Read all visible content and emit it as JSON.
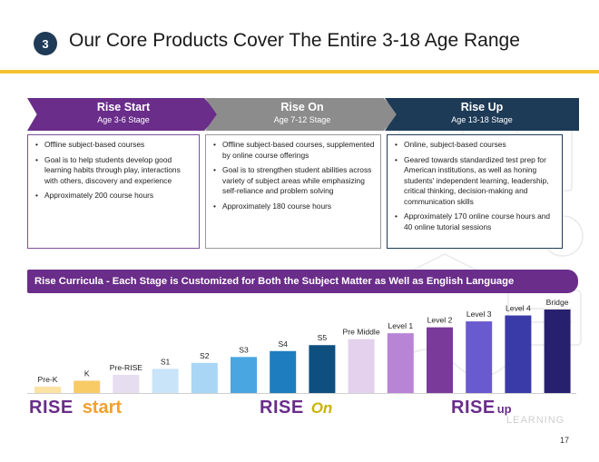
{
  "header": {
    "number": "3",
    "title": "Our Core Products Cover The Entire 3-18 Age Range"
  },
  "stages": [
    {
      "name": "Rise Start",
      "age": "Age 3-6 Stage",
      "bullets": [
        "Offline subject-based courses",
        "Goal is to help students develop good learning habits through play, interactions with others, discovery and experience",
        "Approximately 200 course hours"
      ]
    },
    {
      "name": "Rise On",
      "age": "Age 7-12 Stage",
      "bullets": [
        "Offline subject-based courses, supplemented by online course offerings",
        "Goal is to strengthen student abilities across variety of subject areas while emphasizing self-reliance and problem solving",
        "Approximately 180 course hours"
      ]
    },
    {
      "name": "Rise Up",
      "age": "Age 13-18 Stage",
      "bullets": [
        "Online, subject-based courses",
        "Geared towards standardized test prep for American institutions, as well as honing students' independent learning, leadership, critical thinking, decision-making and communication skills",
        "Approximately 170 online course hours and 40 online tutorial sessions"
      ]
    }
  ],
  "banner": "Rise Curricula - Each Stage is Customized for Both the Subject Matter as Well as English Language",
  "chart_data": {
    "type": "bar",
    "categories": [
      "Pre-K",
      "K",
      "Pre-RISE",
      "S1",
      "S2",
      "S3",
      "S4",
      "S5",
      "Pre Middle",
      "Level 1",
      "Level 2",
      "Level 3",
      "Level 4",
      "Bridge"
    ],
    "values": [
      1,
      2,
      3,
      4,
      5,
      6,
      7,
      8,
      9,
      10,
      11,
      12,
      13,
      14
    ],
    "colors": [
      "#fbe3a3",
      "#f8cb66",
      "#e6ddf0",
      "#c9e4f8",
      "#a8d6f4",
      "#4aa6e0",
      "#1e7dbf",
      "#0e4f7f",
      "#e3d1ee",
      "#b884d6",
      "#7a3a9a",
      "#6a5ad0",
      "#3a3aa8",
      "#26206e"
    ]
  },
  "logos": [
    {
      "brand": "RISE",
      "word": "start"
    },
    {
      "brand": "RISE",
      "word": "On"
    },
    {
      "brand": "RISE",
      "word": "up"
    }
  ],
  "watermark": "LEARNING",
  "page_number": "17"
}
